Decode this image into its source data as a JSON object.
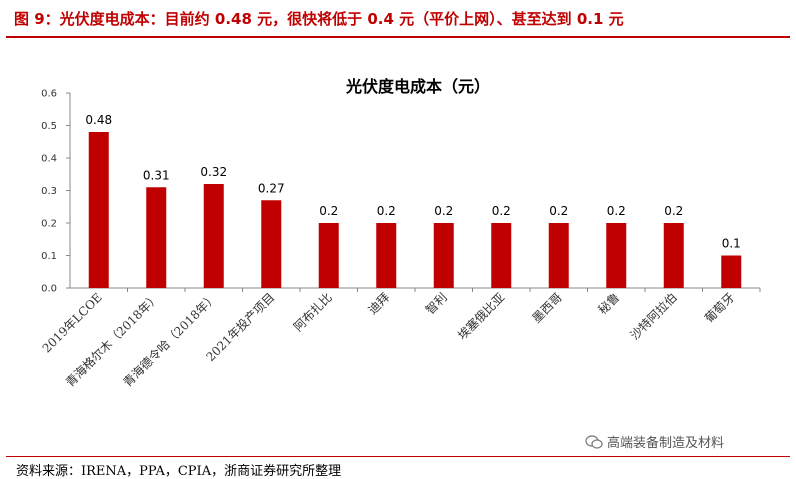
{
  "header": {
    "figure_title": "图 9：光伏度电成本：目前约 0.48 元，很快将低于 0.4 元（平价上网）、甚至达到 0.1 元"
  },
  "footer": {
    "source": "资料来源：IRENA，PPA，CPIA，浙商证券研究所整理",
    "watermark": "高端装备制造及材料",
    "watermark_icon": "wechat-icon"
  },
  "chart_data": {
    "type": "bar",
    "title": "光伏度电成本（元）",
    "categories": [
      "2019年LCOE",
      "青海格尔木（2018年）",
      "青海德令哈（2018年）",
      "2021年投产项目",
      "阿布扎比",
      "迪拜",
      "智利",
      "埃塞俄比亚",
      "墨西哥",
      "秘鲁",
      "沙特阿拉伯",
      "葡萄牙"
    ],
    "values": [
      0.48,
      0.31,
      0.32,
      0.27,
      0.2,
      0.2,
      0.2,
      0.2,
      0.2,
      0.2,
      0.2,
      0.1
    ],
    "data_labels": [
      "0.48",
      "0.31",
      "0.32",
      "0.27",
      "0.2",
      "0.2",
      "0.2",
      "0.2",
      "0.2",
      "0.2",
      "0.2",
      "0.1"
    ],
    "ylim": [
      0,
      0.6
    ],
    "yticks": [
      "0.0",
      "0.1",
      "0.2",
      "0.3",
      "0.4",
      "0.5",
      "0.6"
    ],
    "xlabel": "",
    "ylabel": "",
    "bar_color": "#c00000",
    "grid": false
  }
}
